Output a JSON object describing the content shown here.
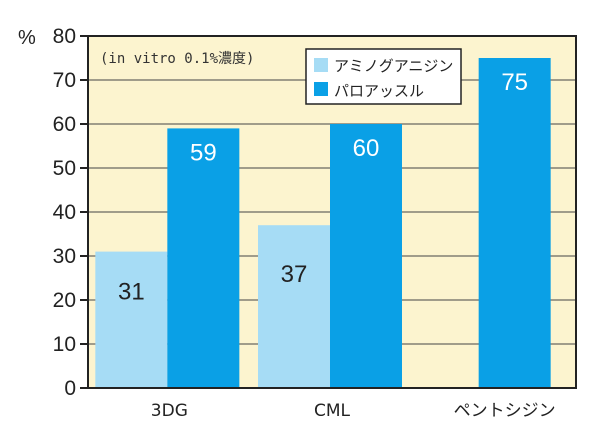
{
  "chart_data": {
    "type": "bar",
    "title": "",
    "xlabel": "",
    "ylabel": "%",
    "annotation": "(in vitro  0.1%濃度)",
    "categories": [
      "3DG",
      "CML",
      "ペントシジン"
    ],
    "series": [
      {
        "name": "アミノグアニジン",
        "color": "#a6dcf5",
        "values": [
          31,
          37,
          null
        ]
      },
      {
        "name": "パロアッスル",
        "color": "#0aa0e6",
        "values": [
          59,
          60,
          75
        ]
      }
    ],
    "ylim": [
      0,
      80
    ],
    "yticks": [
      0,
      10,
      20,
      30,
      40,
      50,
      60,
      70,
      80
    ],
    "value_label_colors": [
      "#222222",
      "#ffffff"
    ],
    "plot_background": "#fcf4cf",
    "grid": "horizontal",
    "legend_position": "top-center"
  }
}
